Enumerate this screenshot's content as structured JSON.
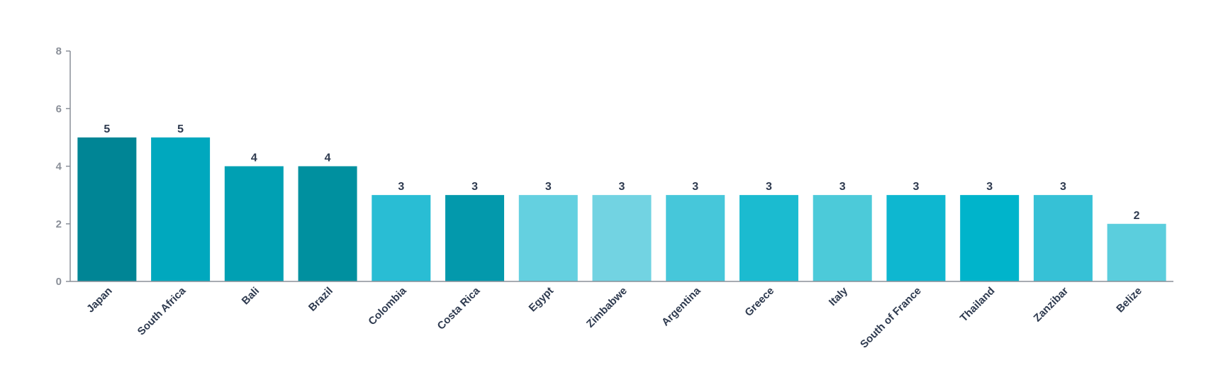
{
  "chart_data": {
    "type": "bar",
    "title": "",
    "xlabel": "",
    "ylabel": "",
    "ylim": [
      0,
      8
    ],
    "yticks": [
      0,
      2,
      4,
      6,
      8
    ],
    "grid": false,
    "categories": [
      "Japan",
      "South Africa",
      "Bali",
      "Brazil",
      "Colombia",
      "Costa Rica",
      "Egypt",
      "Zimbabwe",
      "Argentina",
      "Greece",
      "Italy",
      "South of France",
      "Thailand",
      "Zanzibar",
      "Belize"
    ],
    "values": [
      5,
      5,
      4,
      4,
      3,
      3,
      3,
      3,
      3,
      3,
      3,
      3,
      3,
      3,
      2
    ],
    "colors": [
      "#008595",
      "#00a8be",
      "#00a0b3",
      "#00909f",
      "#29bdd4",
      "#0399ac",
      "#64d0e0",
      "#72d3e2",
      "#46c7da",
      "#1bbbd0",
      "#4ccad9",
      "#0eb7d0",
      "#00b4cb",
      "#36c1d6",
      "#5bcedd"
    ]
  }
}
